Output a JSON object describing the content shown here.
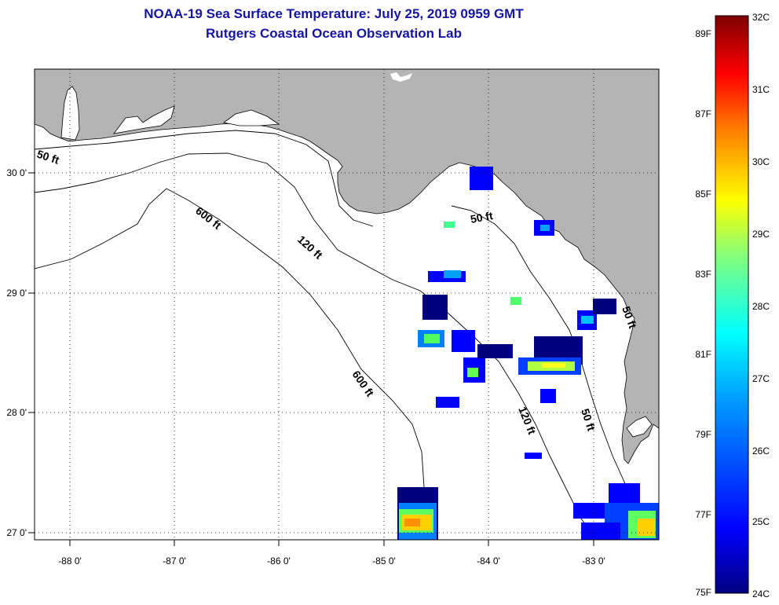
{
  "title": "NOAA-19 Sea Surface Temperature:  July 25, 2019 0959 GMT",
  "subtitle": "Rutgers Coastal Ocean Observation Lab",
  "map": {
    "lon_labels": [
      "-88 0'",
      "-87 0'",
      "-86 0'",
      "-85 0'",
      "-84 0'",
      "-83 0'"
    ],
    "lat_labels": [
      "30 0'",
      "29 0'",
      "28 0'",
      "27 0'"
    ],
    "contour_labels": [
      "50 ft",
      "600 ft",
      "120 ft",
      "50 ft",
      "600 ft",
      "120 ft",
      "50 ft",
      "50 ft"
    ],
    "land_color": "#b4b4b4",
    "water_color": "#ffffff"
  },
  "colorbar": {
    "celsius_labels": [
      "32C",
      "31C",
      "30C",
      "29C",
      "28C",
      "27C",
      "26C",
      "25C",
      "24C"
    ],
    "fahrenheit_labels": [
      "89F",
      "87F",
      "85F",
      "83F",
      "81F",
      "79F",
      "77F",
      "75F"
    ],
    "range_c": [
      24,
      32
    ],
    "colors": [
      "#00007f",
      "#0000ff",
      "#0080ff",
      "#00ffff",
      "#80ff80",
      "#ffff00",
      "#ff8000",
      "#ff0000",
      "#7f0000"
    ]
  }
}
